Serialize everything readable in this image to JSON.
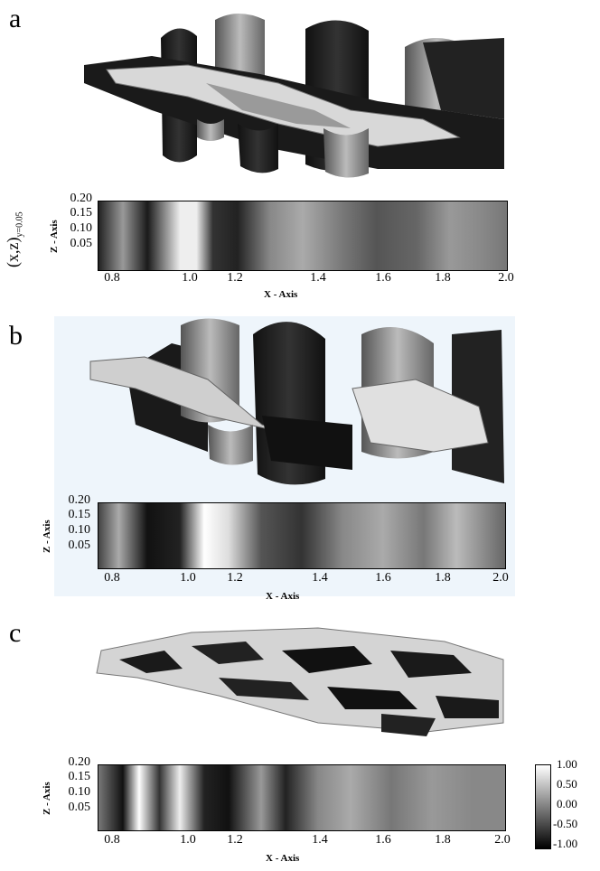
{
  "panels": [
    {
      "letter": "a"
    },
    {
      "letter": "b"
    },
    {
      "letter": "c"
    }
  ],
  "slice_axes": {
    "x_label": "X - Axis",
    "y_label": "Z - Axis",
    "x_ticks": [
      "0.8",
      "1.0",
      "1.2",
      "1.4",
      "1.6",
      "1.8",
      "2.0"
    ],
    "y_ticks": [
      "0.20",
      "0.15",
      "0.10",
      "0.05"
    ]
  },
  "side_label": {
    "main": "(x,z)",
    "sub": "y=0.05"
  },
  "colorbar": {
    "ticks": [
      "1.00",
      "0.50",
      "0.00",
      "-0.50",
      "-1.00"
    ],
    "colors": [
      "#ffffff",
      "#000000"
    ]
  }
}
